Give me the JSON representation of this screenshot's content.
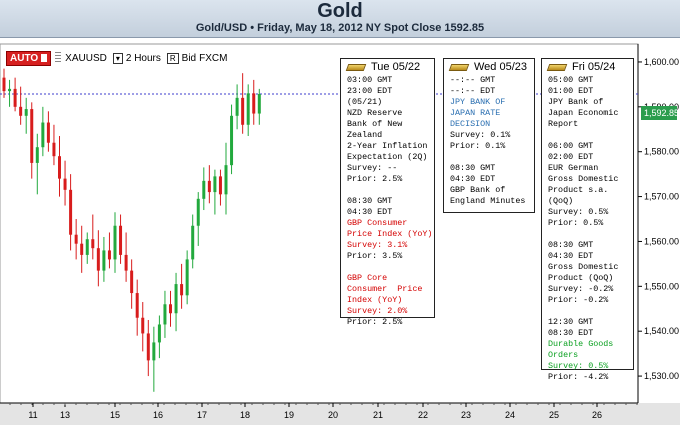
{
  "header": {
    "title": "Gold",
    "subtitle": "Gold/USD • Friday, May 18, 2012 NY Spot Close 1592.85"
  },
  "toolbar": {
    "auto_label": "AUTO",
    "symbol": "XAUUSD",
    "timeframe": "2 Hours",
    "r_label": "R",
    "price_type": "Bid",
    "provider": "FXCM"
  },
  "colors": {
    "bull": "#22a93d",
    "bear": "#d81c1c",
    "spot_line": "#3c3ccc",
    "price_tag": "#2a9d4d"
  },
  "chart_data": {
    "type": "candlestick",
    "title": "Gold",
    "x_ticks": [
      "11",
      "13",
      "15",
      "16",
      "17",
      "18",
      "19",
      "20",
      "21",
      "22",
      "23",
      "24",
      "25",
      "26"
    ],
    "y_ticks": [
      "1,600.00",
      "1,590.00",
      "1,580.00",
      "1,570.00",
      "1,560.00",
      "1,550.00",
      "1,540.00",
      "1,530.00"
    ],
    "ylim": [
      1524,
      1604
    ],
    "last_price": "1,592.85",
    "spot_close": 1592.85,
    "candles": [
      {
        "o": 1596.5,
        "h": 1598.5,
        "l": 1592.0,
        "c": 1593.5
      },
      {
        "o": 1593.5,
        "h": 1596.0,
        "l": 1590.0,
        "c": 1594.0
      },
      {
        "o": 1594.0,
        "h": 1596.5,
        "l": 1589.0,
        "c": 1590.0
      },
      {
        "o": 1590.0,
        "h": 1594.5,
        "l": 1586.0,
        "c": 1588.0
      },
      {
        "o": 1588.0,
        "h": 1592.0,
        "l": 1584.0,
        "c": 1589.5
      },
      {
        "o": 1589.5,
        "h": 1591.0,
        "l": 1574.0,
        "c": 1577.5
      },
      {
        "o": 1577.5,
        "h": 1584.0,
        "l": 1570.5,
        "c": 1581.0
      },
      {
        "o": 1581.0,
        "h": 1590.0,
        "l": 1579.0,
        "c": 1586.5
      },
      {
        "o": 1586.5,
        "h": 1589.0,
        "l": 1580.0,
        "c": 1582.0
      },
      {
        "o": 1582.0,
        "h": 1586.0,
        "l": 1577.0,
        "c": 1579.0
      },
      {
        "o": 1579.0,
        "h": 1583.5,
        "l": 1570.0,
        "c": 1574.0
      },
      {
        "o": 1574.0,
        "h": 1578.0,
        "l": 1568.0,
        "c": 1571.5
      },
      {
        "o": 1571.5,
        "h": 1575.0,
        "l": 1558.0,
        "c": 1561.5
      },
      {
        "o": 1561.5,
        "h": 1565.0,
        "l": 1556.0,
        "c": 1559.5
      },
      {
        "o": 1559.5,
        "h": 1563.5,
        "l": 1553.0,
        "c": 1557.0
      },
      {
        "o": 1557.0,
        "h": 1562.0,
        "l": 1555.0,
        "c": 1560.5
      },
      {
        "o": 1560.5,
        "h": 1566.0,
        "l": 1556.0,
        "c": 1558.5
      },
      {
        "o": 1558.5,
        "h": 1562.5,
        "l": 1550.0,
        "c": 1553.5
      },
      {
        "o": 1553.5,
        "h": 1561.0,
        "l": 1551.0,
        "c": 1558.0
      },
      {
        "o": 1558.0,
        "h": 1562.0,
        "l": 1554.0,
        "c": 1556.0
      },
      {
        "o": 1556.0,
        "h": 1566.5,
        "l": 1553.0,
        "c": 1563.5
      },
      {
        "o": 1563.5,
        "h": 1566.0,
        "l": 1555.0,
        "c": 1557.0
      },
      {
        "o": 1557.0,
        "h": 1562.0,
        "l": 1551.0,
        "c": 1553.5
      },
      {
        "o": 1553.5,
        "h": 1556.0,
        "l": 1545.0,
        "c": 1548.5
      },
      {
        "o": 1548.5,
        "h": 1551.5,
        "l": 1539.0,
        "c": 1543.0
      },
      {
        "o": 1543.0,
        "h": 1546.5,
        "l": 1535.5,
        "c": 1539.5
      },
      {
        "o": 1539.5,
        "h": 1542.5,
        "l": 1530.0,
        "c": 1533.5
      },
      {
        "o": 1533.5,
        "h": 1541.0,
        "l": 1526.5,
        "c": 1537.5
      },
      {
        "o": 1537.5,
        "h": 1543.5,
        "l": 1534.0,
        "c": 1541.5
      },
      {
        "o": 1541.5,
        "h": 1549.0,
        "l": 1538.5,
        "c": 1546.0
      },
      {
        "o": 1546.0,
        "h": 1549.0,
        "l": 1541.0,
        "c": 1544.0
      },
      {
        "o": 1544.0,
        "h": 1553.0,
        "l": 1540.0,
        "c": 1550.5
      },
      {
        "o": 1550.5,
        "h": 1555.0,
        "l": 1545.0,
        "c": 1548.0
      },
      {
        "o": 1548.0,
        "h": 1558.0,
        "l": 1546.0,
        "c": 1556.0
      },
      {
        "o": 1556.0,
        "h": 1566.0,
        "l": 1554.0,
        "c": 1563.5
      },
      {
        "o": 1563.5,
        "h": 1571.0,
        "l": 1559.0,
        "c": 1569.5
      },
      {
        "o": 1569.5,
        "h": 1576.5,
        "l": 1567.0,
        "c": 1573.5
      },
      {
        "o": 1573.5,
        "h": 1577.0,
        "l": 1568.5,
        "c": 1571.0
      },
      {
        "o": 1571.0,
        "h": 1576.0,
        "l": 1566.0,
        "c": 1574.5
      },
      {
        "o": 1574.5,
        "h": 1576.0,
        "l": 1568.0,
        "c": 1570.5
      },
      {
        "o": 1570.5,
        "h": 1582.0,
        "l": 1566.0,
        "c": 1577.0
      },
      {
        "o": 1577.0,
        "h": 1590.5,
        "l": 1575.0,
        "c": 1588.0
      },
      {
        "o": 1588.0,
        "h": 1595.0,
        "l": 1585.0,
        "c": 1592.0
      },
      {
        "o": 1592.0,
        "h": 1597.5,
        "l": 1584.0,
        "c": 1586.0
      },
      {
        "o": 1586.0,
        "h": 1595.0,
        "l": 1583.5,
        "c": 1593.0
      },
      {
        "o": 1593.0,
        "h": 1596.0,
        "l": 1586.0,
        "c": 1588.5
      },
      {
        "o": 1588.5,
        "h": 1594.0,
        "l": 1586.0,
        "c": 1592.85
      }
    ]
  },
  "events": [
    {
      "date": "Tue 05/22",
      "items": [
        {
          "lines": [
            {
              "text": "03:00 GMT",
              "color": ""
            },
            {
              "text": "23:00 EDT",
              "color": ""
            },
            {
              "text": "(05/21)",
              "color": ""
            },
            {
              "text": "NZD Reserve",
              "color": ""
            },
            {
              "text": "Bank of New",
              "color": ""
            },
            {
              "text": "Zealand",
              "color": ""
            },
            {
              "text": "2-Year Inflation",
              "color": ""
            },
            {
              "text": "Expectation (2Q)",
              "color": ""
            },
            {
              "text": "Survey: --",
              "color": ""
            },
            {
              "text": "Prior: 2.5%",
              "color": ""
            }
          ]
        },
        {
          "lines": [
            {
              "text": "08:30 GMT",
              "color": ""
            },
            {
              "text": "04:30 EDT",
              "color": ""
            },
            {
              "text": "GBP Consumer",
              "color": "red"
            },
            {
              "text": "Price Index (YoY)",
              "color": "red"
            },
            {
              "text": "Survey: 3.1%",
              "color": "red"
            },
            {
              "text": "Prior: 3.5%",
              "color": ""
            }
          ]
        },
        {
          "lines": [
            {
              "text": "GBP Core",
              "color": "red"
            },
            {
              "text": "Consumer  Price",
              "color": "red"
            },
            {
              "text": "Index (YoY)",
              "color": "red"
            },
            {
              "text": "Survey: 2.0%",
              "color": "red"
            },
            {
              "text": "Prior: 2.5%",
              "color": ""
            }
          ]
        }
      ]
    },
    {
      "date": "Wed 05/23",
      "items": [
        {
          "lines": [
            {
              "text": "--:-- GMT",
              "color": ""
            },
            {
              "text": "--:-- EDT",
              "color": ""
            },
            {
              "text": "JPY BANK OF",
              "color": "blue"
            },
            {
              "text": "JAPAN RATE",
              "color": "blue"
            },
            {
              "text": "DECISION",
              "color": "blue"
            },
            {
              "text": "Survey: 0.1%",
              "color": ""
            },
            {
              "text": "Prior: 0.1%",
              "color": ""
            }
          ]
        },
        {
          "lines": [
            {
              "text": "08:30 GMT",
              "color": ""
            },
            {
              "text": "04:30 EDT",
              "color": ""
            },
            {
              "text": "GBP Bank of",
              "color": ""
            },
            {
              "text": "England Minutes",
              "color": ""
            }
          ]
        }
      ]
    },
    {
      "date": "Fri 05/24",
      "items": [
        {
          "lines": [
            {
              "text": "05:00 GMT",
              "color": ""
            },
            {
              "text": "01:00 EDT",
              "color": ""
            },
            {
              "text": "JPY Bank of",
              "color": ""
            },
            {
              "text": "Japan Economic",
              "color": ""
            },
            {
              "text": "Report",
              "color": ""
            }
          ]
        },
        {
          "lines": [
            {
              "text": "06:00 GMT",
              "color": ""
            },
            {
              "text": "02:00 EDT",
              "color": ""
            },
            {
              "text": "EUR German",
              "color": ""
            },
            {
              "text": "Gross Domestic",
              "color": ""
            },
            {
              "text": "Product s.a.",
              "color": ""
            },
            {
              "text": "(QoQ)",
              "color": ""
            },
            {
              "text": "Survey: 0.5%",
              "color": ""
            },
            {
              "text": "Prior: 0.5%",
              "color": ""
            }
          ]
        },
        {
          "lines": [
            {
              "text": "08:30 GMT",
              "color": ""
            },
            {
              "text": "04:30 EDT",
              "color": ""
            },
            {
              "text": "Gross Domestic",
              "color": ""
            },
            {
              "text": "Product (QoQ)",
              "color": ""
            },
            {
              "text": "Survey: -0.2%",
              "color": ""
            },
            {
              "text": "Prior: -0.2%",
              "color": ""
            }
          ]
        },
        {
          "lines": [
            {
              "text": "12:30 GMT",
              "color": ""
            },
            {
              "text": "08:30 EDT",
              "color": ""
            },
            {
              "text": "Durable Goods",
              "color": "green"
            },
            {
              "text": "Orders",
              "color": "green"
            },
            {
              "text": "Survey: 0.5%",
              "color": "green"
            },
            {
              "text": "Prior: -4.2%",
              "color": ""
            }
          ]
        }
      ]
    }
  ]
}
